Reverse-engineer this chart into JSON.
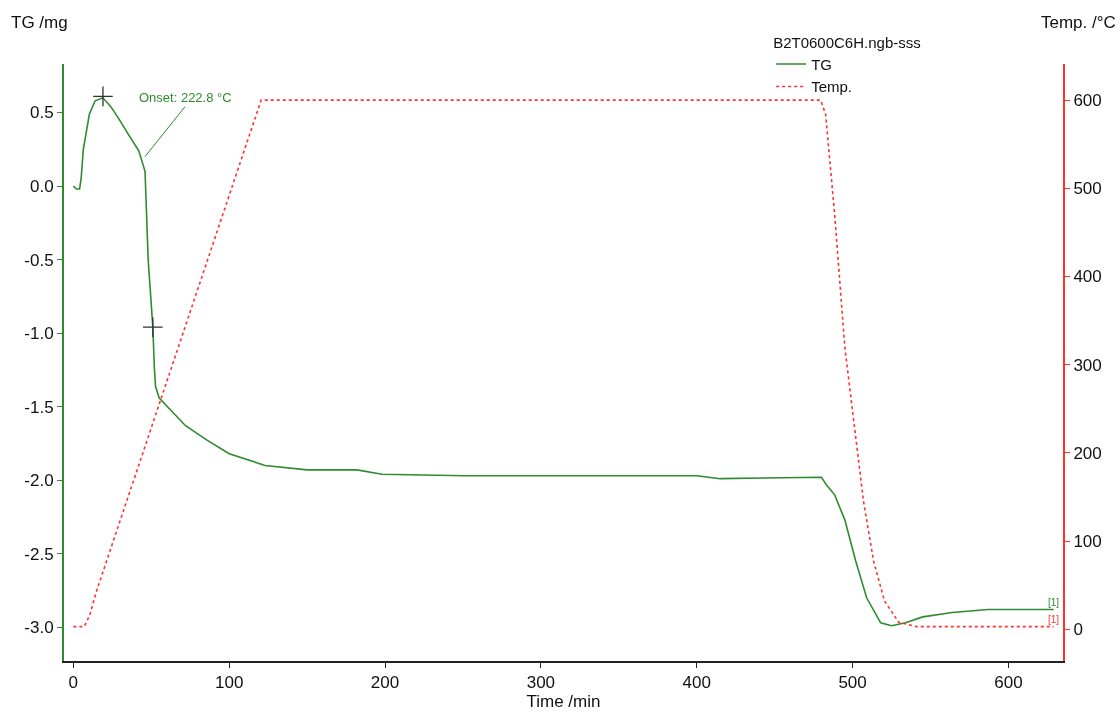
{
  "chart_data": {
    "type": "line",
    "xlabel": "Time /min",
    "ylabel": "TG /mg",
    "y2label": "Temp. /°C",
    "legend_title": "B2T0600C6H.ngb-sss",
    "series": [
      {
        "name": "TG",
        "color": "#2e8b2e",
        "line_style": "solid",
        "x": [
          0,
          2,
          4,
          5,
          6.4,
          10.3,
          14,
          19,
          24,
          29,
          36,
          42,
          46,
          48,
          51,
          52,
          52.7,
          55,
          63,
          72,
          86,
          100,
          123,
          150,
          182,
          198,
          251,
          300,
          312,
          400,
          415,
          480,
          483,
          488.5,
          495,
          502,
          509,
          518,
          525,
          534,
          545,
          564,
          587,
          629
        ],
        "values": [
          0.0,
          -0.02,
          -0.02,
          0.05,
          0.25,
          0.49,
          0.58,
          0.6,
          0.54,
          0.46,
          0.34,
          0.24,
          0.1,
          -0.5,
          -0.96,
          -1.24,
          -1.36,
          -1.44,
          -1.53,
          -1.63,
          -1.73,
          -1.82,
          -1.9,
          -1.93,
          -1.93,
          -1.96,
          -1.97,
          -1.97,
          -1.97,
          -1.97,
          -1.99,
          -1.98,
          -2.03,
          -2.1,
          -2.27,
          -2.55,
          -2.8,
          -2.97,
          -2.99,
          -2.97,
          -2.93,
          -2.9,
          -2.88,
          -2.88
        ]
      },
      {
        "name": "Temp.",
        "color": "#ff3030",
        "line_style": "dotted",
        "axis": "y2",
        "x": [
          0,
          7,
          10.5,
          15,
          120.5,
          479.5,
          482.7,
          488.5,
          495,
          500,
          507,
          513.5,
          520.5,
          529.5,
          541,
          629
        ],
        "values": [
          3,
          3,
          16,
          44,
          600,
          600,
          584,
          470,
          320,
          247,
          145,
          77,
          32,
          8,
          3,
          3
        ]
      },
      {
        "type": "scatter",
        "marker": "cross",
        "color": "#333333",
        "x": [
          19,
          51
        ],
        "values": [
          0.61,
          -0.96
        ]
      }
    ],
    "annotations": [
      {
        "text": "Onset: 222.8 °C",
        "x": 46,
        "y": 0.2
      },
      "[1]",
      "[1]"
    ],
    "xlim": [
      -6,
      635
    ],
    "xticks": [
      0,
      100,
      200,
      300,
      400,
      500,
      600
    ],
    "ylim": [
      -3.23,
      0.83
    ],
    "yticks": [
      {
        "value": 0.5,
        "label": "0.5"
      },
      {
        "value": 0,
        "label": "0.0"
      },
      {
        "value": -0.5,
        "label": "-0.5"
      },
      {
        "value": -1,
        "label": "-1.0"
      },
      {
        "value": -1.5,
        "label": "-1.5"
      },
      {
        "value": -2,
        "label": "-2.0"
      },
      {
        "value": -2.5,
        "label": "-2.5"
      },
      {
        "value": -3,
        "label": "-3.0"
      }
    ],
    "y2lim": [
      -36,
      641
    ],
    "y2ticks": [
      0,
      100,
      200,
      300,
      400,
      500,
      600
    ],
    "legend": "top right",
    "marker": "none"
  }
}
